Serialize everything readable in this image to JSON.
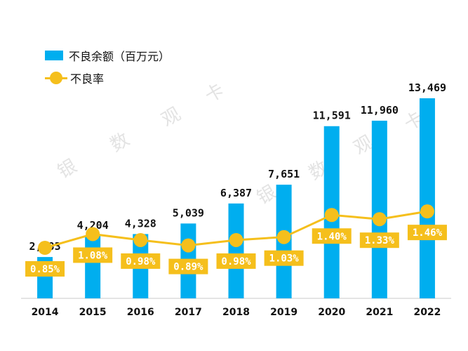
{
  "chart_data": {
    "type": "bar+line",
    "categories": [
      "2014",
      "2015",
      "2016",
      "2017",
      "2018",
      "2019",
      "2020",
      "2021",
      "2022"
    ],
    "series": [
      {
        "name": "不良余额（百万元）",
        "type": "bar",
        "values": [
          2783,
          4204,
          4328,
          5039,
          6387,
          7651,
          11591,
          11960,
          13469
        ],
        "labels": [
          "2,783",
          "4,204",
          "4,328",
          "5,039",
          "6,387",
          "7,651",
          "11,591",
          "11,960",
          "13,469"
        ]
      },
      {
        "name": "不良率",
        "type": "line",
        "unit": "%",
        "values": [
          0.85,
          1.08,
          0.98,
          0.89,
          0.98,
          1.03,
          1.4,
          1.33,
          1.46
        ],
        "labels": [
          "0.85%",
          "1.08%",
          "0.98%",
          "0.89%",
          "0.98%",
          "1.03%",
          "1.40%",
          "1.33%",
          "1.46%"
        ]
      }
    ],
    "axes": {
      "bar_axis_visible": false,
      "line_axis_visible": false
    },
    "grid": false,
    "legend_position": "top-left",
    "colors": {
      "bar": "#00aeef",
      "line": "#f5bf1c",
      "label_box": "#f5bf1c",
      "label_text": "#ffffff",
      "value_text": "#111111"
    }
  },
  "watermark": [
    "银",
    "数",
    "观",
    "卡"
  ]
}
